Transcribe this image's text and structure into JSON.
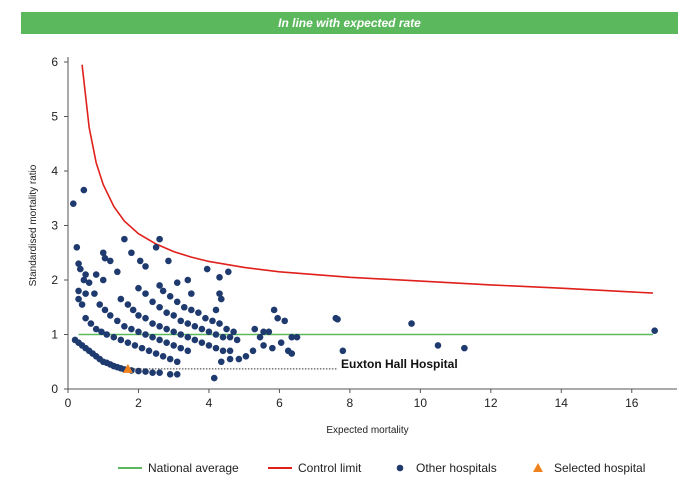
{
  "banner": {
    "text": "In line with expected rate",
    "color": "#5cb85c"
  },
  "chart_data": {
    "type": "scatter",
    "xlabel": "Expected mortality",
    "ylabel": "Standardised mortality ratio",
    "xlim": [
      0,
      17
    ],
    "ylim": [
      0,
      6
    ],
    "xticks": [
      "0",
      "2",
      "4",
      "6",
      "8",
      "10",
      "12",
      "14",
      "16"
    ],
    "yticks": [
      "0",
      "1",
      "2",
      "3",
      "4",
      "5",
      "6"
    ],
    "grid": false,
    "legend_position": "bottom",
    "national_average": {
      "name": "National average",
      "value": 1,
      "x_range": [
        0.3,
        16.6
      ],
      "color": "#5cb85c"
    },
    "control_limit": {
      "name": "Control limit",
      "color": "#e0201b",
      "x": [
        0.4,
        0.6,
        0.8,
        1.0,
        1.3,
        1.6,
        2.0,
        2.5,
        3.0,
        3.5,
        4.0,
        5.0,
        6.0,
        7.0,
        8.0,
        10.0,
        12.0,
        14.0,
        16.6
      ],
      "y": [
        5.95,
        4.8,
        4.15,
        3.75,
        3.35,
        3.08,
        2.85,
        2.66,
        2.52,
        2.42,
        2.34,
        2.23,
        2.15,
        2.1,
        2.05,
        1.98,
        1.91,
        1.85,
        1.76
      ]
    },
    "other_hospitals": {
      "name": "Other hospitals",
      "color": "#1e3a6e",
      "points": [
        [
          0.15,
          3.4
        ],
        [
          0.25,
          2.6
        ],
        [
          0.45,
          3.65
        ],
        [
          0.3,
          2.3
        ],
        [
          0.35,
          2.2
        ],
        [
          0.5,
          2.1
        ],
        [
          0.45,
          2.0
        ],
        [
          0.6,
          1.95
        ],
        [
          0.3,
          1.8
        ],
        [
          0.5,
          1.75
        ],
        [
          0.3,
          1.65
        ],
        [
          0.4,
          1.55
        ],
        [
          0.75,
          1.75
        ],
        [
          0.8,
          2.1
        ],
        [
          1.0,
          2.5
        ],
        [
          1.05,
          2.4
        ],
        [
          1.2,
          2.35
        ],
        [
          1.0,
          2.0
        ],
        [
          1.4,
          2.15
        ],
        [
          1.6,
          2.75
        ],
        [
          1.8,
          2.5
        ],
        [
          2.5,
          2.6
        ],
        [
          2.6,
          2.75
        ],
        [
          2.05,
          2.35
        ],
        [
          2.2,
          2.25
        ],
        [
          2.85,
          2.35
        ],
        [
          3.1,
          1.95
        ],
        [
          3.4,
          2.0
        ],
        [
          3.5,
          1.75
        ],
        [
          3.95,
          2.2
        ],
        [
          4.3,
          2.05
        ],
        [
          4.55,
          2.15
        ],
        [
          4.3,
          1.75
        ],
        [
          4.2,
          1.45
        ],
        [
          4.35,
          1.65
        ],
        [
          5.3,
          1.1
        ],
        [
          5.45,
          0.95
        ],
        [
          5.55,
          1.05
        ],
        [
          5.7,
          1.05
        ],
        [
          5.85,
          1.45
        ],
        [
          5.95,
          1.3
        ],
        [
          6.15,
          1.25
        ],
        [
          6.35,
          0.95
        ],
        [
          6.5,
          0.95
        ],
        [
          6.05,
          0.85
        ],
        [
          6.25,
          0.7
        ],
        [
          6.35,
          0.65
        ],
        [
          5.8,
          0.75
        ],
        [
          5.55,
          0.8
        ],
        [
          5.25,
          0.7
        ],
        [
          5.05,
          0.6
        ],
        [
          4.85,
          0.55
        ],
        [
          4.6,
          0.55
        ],
        [
          4.35,
          0.5
        ],
        [
          4.15,
          0.2
        ],
        [
          7.6,
          1.3
        ],
        [
          7.65,
          1.28
        ],
        [
          7.8,
          0.7
        ],
        [
          9.75,
          1.2
        ],
        [
          10.5,
          0.8
        ],
        [
          11.25,
          0.75
        ],
        [
          16.65,
          1.07
        ],
        [
          1.5,
          1.65
        ],
        [
          1.7,
          1.55
        ],
        [
          1.85,
          1.45
        ],
        [
          2.0,
          1.35
        ],
        [
          2.2,
          1.3
        ],
        [
          2.4,
          1.2
        ],
        [
          2.6,
          1.15
        ],
        [
          2.8,
          1.1
        ],
        [
          3.0,
          1.05
        ],
        [
          3.2,
          1.0
        ],
        [
          3.4,
          0.95
        ],
        [
          3.6,
          0.9
        ],
        [
          3.8,
          0.85
        ],
        [
          4.0,
          0.8
        ],
        [
          4.2,
          0.75
        ],
        [
          4.4,
          0.7
        ],
        [
          4.6,
          0.7
        ],
        [
          2.0,
          1.85
        ],
        [
          2.2,
          1.75
        ],
        [
          2.4,
          1.6
        ],
        [
          2.6,
          1.5
        ],
        [
          2.8,
          1.4
        ],
        [
          3.0,
          1.35
        ],
        [
          3.2,
          1.25
        ],
        [
          3.4,
          1.2
        ],
        [
          3.6,
          1.15
        ],
        [
          3.8,
          1.1
        ],
        [
          4.0,
          1.05
        ],
        [
          4.2,
          1.0
        ],
        [
          4.4,
          0.95
        ],
        [
          4.6,
          0.95
        ],
        [
          4.8,
          0.9
        ],
        [
          0.9,
          1.55
        ],
        [
          1.05,
          1.45
        ],
        [
          1.2,
          1.35
        ],
        [
          1.4,
          1.25
        ],
        [
          1.6,
          1.15
        ],
        [
          1.8,
          1.1
        ],
        [
          2.0,
          1.05
        ],
        [
          2.2,
          1.0
        ],
        [
          2.4,
          0.95
        ],
        [
          2.6,
          0.9
        ],
        [
          2.8,
          0.85
        ],
        [
          3.0,
          0.8
        ],
        [
          3.2,
          0.75
        ],
        [
          3.4,
          0.7
        ],
        [
          0.5,
          1.3
        ],
        [
          0.65,
          1.2
        ],
        [
          0.8,
          1.1
        ],
        [
          0.95,
          1.05
        ],
        [
          1.1,
          1.0
        ],
        [
          1.3,
          0.95
        ],
        [
          1.5,
          0.9
        ],
        [
          1.7,
          0.85
        ],
        [
          1.9,
          0.8
        ],
        [
          2.1,
          0.75
        ],
        [
          2.3,
          0.7
        ],
        [
          2.5,
          0.65
        ],
        [
          2.7,
          0.6
        ],
        [
          2.9,
          0.55
        ],
        [
          3.1,
          0.5
        ],
        [
          0.2,
          0.9
        ],
        [
          0.3,
          0.85
        ],
        [
          0.4,
          0.8
        ],
        [
          0.5,
          0.75
        ],
        [
          0.6,
          0.7
        ],
        [
          0.7,
          0.65
        ],
        [
          0.8,
          0.6
        ],
        [
          0.9,
          0.55
        ],
        [
          1.0,
          0.5
        ],
        [
          1.1,
          0.48
        ],
        [
          1.2,
          0.45
        ],
        [
          1.3,
          0.42
        ],
        [
          1.4,
          0.4
        ],
        [
          1.5,
          0.38
        ],
        [
          1.6,
          0.36
        ],
        [
          1.8,
          0.34
        ],
        [
          2.0,
          0.33
        ],
        [
          2.2,
          0.32
        ],
        [
          2.4,
          0.3
        ],
        [
          2.6,
          0.3
        ],
        [
          2.9,
          0.27
        ],
        [
          3.1,
          0.27
        ],
        [
          2.6,
          1.9
        ],
        [
          2.7,
          1.8
        ],
        [
          2.9,
          1.7
        ],
        [
          3.1,
          1.6
        ],
        [
          3.3,
          1.5
        ],
        [
          3.5,
          1.45
        ],
        [
          3.7,
          1.4
        ],
        [
          3.9,
          1.3
        ],
        [
          4.1,
          1.25
        ],
        [
          4.3,
          1.2
        ],
        [
          4.5,
          1.1
        ],
        [
          4.7,
          1.05
        ]
      ]
    },
    "selected_hospital": {
      "name": "Selected hospital",
      "label": "Euxton Hall Hospital",
      "x": 1.7,
      "y": 0.37,
      "color": "#f0821e"
    }
  },
  "legend": {
    "items": [
      {
        "label": "National average",
        "kind": "line",
        "color": "#5cb85c"
      },
      {
        "label": "Control limit",
        "kind": "line",
        "color": "#e0201b"
      },
      {
        "label": "Other hospitals",
        "kind": "dot",
        "color": "#1e3a6e"
      },
      {
        "label": "Selected hospital",
        "kind": "triangle",
        "color": "#f0821e"
      }
    ]
  }
}
